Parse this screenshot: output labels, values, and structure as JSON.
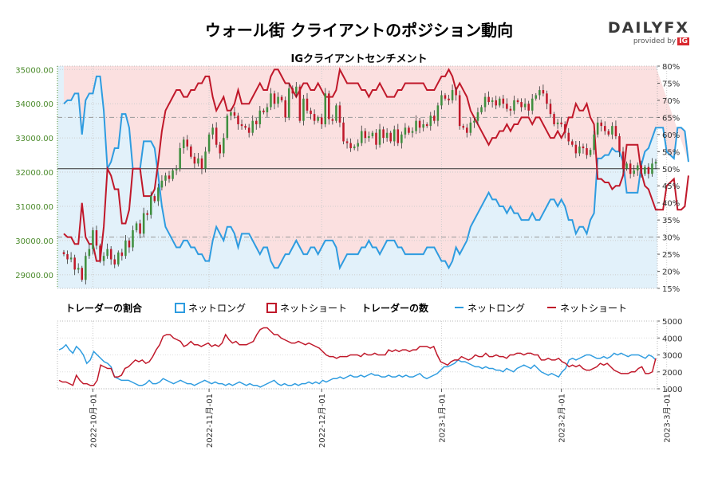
{
  "header": {
    "title": "ウォール街 クライアントのポジション動向",
    "subtitle": "IGクライアントセンチメント",
    "logo": {
      "word_part1": "DAILY",
      "word_part2": "FX",
      "provided_by": "provided by",
      "brand": "IG"
    }
  },
  "legend": {
    "ratio_title": "トレーダーの割合",
    "count_title": "トレーダーの数",
    "net_long": "ネットロング",
    "net_short": "ネットショート"
  },
  "colors": {
    "net_long": "#2e9ce0",
    "net_short": "#c0182a",
    "candle_up": "#3f8f3f",
    "candle_down": "#c0182a",
    "fill_short": "#fbe0e0",
    "fill_long": "#e2f1fa",
    "axis_left": "#4a8a2a"
  },
  "chart_data": [
    {
      "type": "candlestick",
      "name": "price",
      "y_axis_left": {
        "ticks": [
          "35000.00",
          "34000.00",
          "33000.00",
          "32000.00",
          "31000.00",
          "30000.00",
          "29000.00"
        ],
        "range": [
          28600,
          35100
        ]
      },
      "y_axis_right": {
        "ticks": [
          "80%",
          "75%",
          "70%",
          "65%",
          "60%",
          "55%",
          "50%",
          "45%",
          "40%",
          "35%",
          "30%",
          "25%",
          "20%",
          "15%"
        ],
        "range": [
          15,
          80
        ]
      },
      "x_ticks": [
        "2022-10月-01",
        "2022-11月-01",
        "2022-12月-01",
        "2023-1月-01",
        "2023-2月-01",
        "2023-3月-01"
      ],
      "x_tick_index": [
        8,
        40,
        71,
        104,
        137,
        166
      ],
      "close": [
        29600,
        29450,
        29500,
        29150,
        29200,
        28850,
        29550,
        29750,
        30300,
        29850,
        29400,
        29550,
        29750,
        29450,
        29300,
        29650,
        29550,
        30000,
        29800,
        30300,
        30500,
        30200,
        30800,
        30750,
        31300,
        31150,
        31550,
        31750,
        31900,
        31800,
        32050,
        32100,
        32700,
        32950,
        32750,
        32450,
        32250,
        32400,
        32100,
        32600,
        33100,
        33300,
        32800,
        32550,
        33000,
        33650,
        33750,
        33650,
        33400,
        33350,
        33300,
        33150,
        33500,
        33400,
        33800,
        33750,
        33900,
        34300,
        34000,
        34200,
        34100,
        33600,
        34450,
        34300,
        34500,
        33500,
        34150,
        33800,
        33700,
        33500,
        33600,
        33400,
        34300,
        33550,
        33500,
        33950,
        33450,
        32900,
        32850,
        32700,
        32750,
        32850,
        33200,
        33000,
        33050,
        33150,
        32800,
        33250,
        33000,
        33150,
        32900,
        33250,
        32850,
        33100,
        33300,
        33150,
        33200,
        33500,
        33300,
        33400,
        33350,
        33650,
        33500,
        33950,
        34250,
        34150,
        34100,
        34400,
        34250,
        33350,
        33300,
        33150,
        33450,
        33500,
        33750,
        33900,
        34200,
        34050,
        34100,
        33950,
        34150,
        34000,
        33850,
        33800,
        34100,
        34050,
        33900,
        34000,
        33800,
        34150,
        34250,
        34400,
        34300,
        34000,
        33700,
        33400,
        33450,
        33400,
        33150,
        32900,
        32800,
        32550,
        32750,
        32700,
        32500,
        32650,
        33100,
        33450,
        33350,
        33200,
        33100,
        33350,
        33050,
        32600,
        32100,
        32250,
        31950,
        32050,
        32200,
        31950,
        32150,
        31950,
        32250,
        32300
      ],
      "ratio_net_long_pct": [
        69,
        70,
        70,
        72,
        72,
        60,
        70,
        72,
        72,
        77,
        77,
        67,
        50,
        52,
        56,
        56,
        66,
        66,
        62,
        50,
        50,
        50,
        58,
        58,
        58,
        56,
        48,
        39,
        33,
        31,
        29,
        27,
        27,
        29,
        29,
        27,
        27,
        25,
        25,
        23,
        23,
        29,
        33,
        31,
        29,
        33,
        33,
        31,
        27,
        31,
        31,
        31,
        29,
        27,
        25,
        27,
        27,
        23,
        21,
        21,
        23,
        25,
        25,
        27,
        29,
        27,
        25,
        25,
        27,
        27,
        25,
        27,
        29,
        29,
        29,
        27,
        21,
        23,
        25,
        25,
        25,
        25,
        27,
        27,
        29,
        27,
        27,
        25,
        27,
        29,
        29,
        29,
        27,
        27,
        25,
        25,
        25,
        25,
        25,
        25,
        27,
        27,
        27,
        25,
        23,
        23,
        21,
        23,
        27,
        25,
        27,
        29,
        33,
        35,
        37,
        39,
        41,
        43,
        41,
        41,
        39,
        39,
        37,
        39,
        37,
        37,
        35,
        35,
        35,
        37,
        35,
        35,
        37,
        39,
        41,
        41,
        39,
        41,
        39,
        35,
        35,
        31,
        33,
        33,
        31,
        35,
        37,
        53,
        53,
        54,
        54,
        56,
        55,
        55,
        52,
        43,
        43,
        43,
        43,
        51,
        55,
        56,
        59,
        62,
        62,
        62,
        55,
        54,
        53,
        62,
        62,
        61,
        52
      ],
      "ratio_net_short_pct": [
        31,
        30,
        30,
        28,
        28,
        40,
        30,
        28,
        28,
        23,
        23,
        33,
        50,
        48,
        44,
        44,
        34,
        34,
        38,
        50,
        50,
        50,
        42,
        42,
        42,
        44,
        52,
        61,
        67,
        69,
        71,
        73,
        73,
        71,
        71,
        73,
        73,
        75,
        75,
        77,
        77,
        71,
        67,
        69,
        71,
        67,
        67,
        69,
        73,
        69,
        69,
        69,
        71,
        73,
        75,
        73,
        73,
        77,
        79,
        79,
        77,
        75,
        75,
        73,
        71,
        73,
        75,
        75,
        73,
        73,
        75,
        73,
        71,
        71,
        71,
        73,
        79,
        77,
        75,
        75,
        75,
        75,
        73,
        73,
        71,
        73,
        73,
        75,
        73,
        71,
        71,
        71,
        73,
        73,
        75,
        75,
        75,
        75,
        75,
        75,
        73,
        73,
        73,
        75,
        77,
        77,
        79,
        77,
        73,
        75,
        73,
        71,
        67,
        65,
        63,
        61,
        59,
        57,
        59,
        59,
        61,
        61,
        63,
        61,
        63,
        63,
        65,
        65,
        65,
        63,
        65,
        65,
        63,
        61,
        59,
        59,
        61,
        59,
        61,
        65,
        65,
        69,
        67,
        67,
        69,
        65,
        63,
        47,
        47,
        46,
        46,
        44,
        45,
        45,
        48,
        57,
        57,
        57,
        57,
        49,
        45,
        44,
        41,
        38,
        38,
        38,
        45,
        46,
        47,
        38,
        38,
        39,
        48
      ]
    },
    {
      "type": "line",
      "name": "trader_counts",
      "y_axis_right": {
        "ticks": [
          "5000",
          "4000",
          "3000",
          "2000",
          "1000"
        ],
        "range": [
          1000,
          5000
        ]
      },
      "net_long_approx": [
        3300,
        3400,
        3600,
        3300,
        3100,
        3500,
        3300,
        3000,
        2500,
        2700,
        3200,
        3000,
        2800,
        2600,
        2500,
        2300,
        1700,
        1600,
        1500,
        1500,
        1500,
        1400,
        1300,
        1200,
        1200,
        1300,
        1500,
        1300,
        1300,
        1400,
        1600,
        1500,
        1400,
        1300,
        1400,
        1500,
        1400,
        1300,
        1300,
        1200,
        1300,
        1400,
        1500,
        1400,
        1300,
        1400,
        1300,
        1300,
        1200,
        1300,
        1200,
        1300,
        1400,
        1300,
        1200,
        1300,
        1200,
        1200,
        1100,
        1200,
        1300,
        1400,
        1500,
        1300,
        1200,
        1300,
        1200,
        1200,
        1300,
        1200,
        1300,
        1300,
        1400,
        1300,
        1400,
        1300,
        1500,
        1400,
        1500,
        1600,
        1600,
        1700,
        1600,
        1700,
        1800,
        1700,
        1700,
        1800,
        1700,
        1800,
        1900,
        1800,
        1800,
        1700,
        1700,
        1800,
        1700,
        1700,
        1800,
        1700,
        1800,
        1700,
        1700,
        1800,
        1900,
        1700,
        1600,
        1700,
        1800,
        1900,
        2100,
        2300,
        2300,
        2400,
        2500,
        2700,
        2600,
        2600,
        2500,
        2400,
        2300,
        2300,
        2200,
        2300,
        2200,
        2200,
        2100,
        2100,
        2000,
        2200,
        2100,
        2000,
        2200,
        2300,
        2400,
        2300,
        2200,
        2400,
        2200,
        2000,
        1900,
        1800,
        1900,
        1800,
        1700,
        2000,
        2200,
        2700,
        2800,
        2700,
        2800,
        2900,
        3000,
        3000,
        2900,
        2800,
        2800,
        2900,
        2800,
        2900,
        3100,
        3000,
        3100,
        3000,
        2900,
        3000,
        3000,
        3000,
        2900,
        2800,
        3000,
        2900,
        2700
      ],
      "net_short_approx": [
        1500,
        1400,
        1400,
        1300,
        1200,
        1800,
        1500,
        1300,
        1300,
        1200,
        1200,
        1500,
        2400,
        2300,
        2200,
        2200,
        1700,
        1700,
        1800,
        2200,
        2300,
        2500,
        2700,
        2600,
        2700,
        2500,
        2600,
        2900,
        3300,
        3600,
        4100,
        4200,
        4200,
        4000,
        3900,
        3800,
        3500,
        3600,
        3800,
        3600,
        3600,
        3500,
        3600,
        3700,
        3500,
        3600,
        3500,
        3700,
        4200,
        3900,
        3700,
        3800,
        3600,
        3600,
        3600,
        3700,
        3800,
        4200,
        4500,
        4600,
        4600,
        4400,
        4200,
        4200,
        4000,
        3900,
        3800,
        3700,
        3700,
        3800,
        3700,
        3600,
        3700,
        3600,
        3500,
        3400,
        3200,
        3000,
        2900,
        2900,
        2800,
        2900,
        2900,
        2900,
        3000,
        3000,
        3000,
        2900,
        3100,
        3000,
        3000,
        3100,
        3000,
        3000,
        3000,
        3300,
        3200,
        3300,
        3200,
        3300,
        3300,
        3200,
        3300,
        3300,
        3500,
        3500,
        3500,
        3400,
        3500,
        3000,
        2600,
        2500,
        2400,
        2600,
        2700,
        2700,
        2900,
        2800,
        2700,
        2800,
        3000,
        2900,
        2900,
        3100,
        2900,
        2900,
        3000,
        2900,
        2900,
        2800,
        3000,
        3000,
        3100,
        3100,
        3000,
        3100,
        3100,
        3000,
        3000,
        2700,
        2700,
        2800,
        2700,
        2700,
        2800,
        2600,
        2500,
        2300,
        2400,
        2300,
        2400,
        2200,
        2100,
        2100,
        2200,
        2300,
        2500,
        2400,
        2500,
        2300,
        2100,
        2000,
        1900,
        1900,
        1900,
        2000,
        2000,
        2200,
        2300,
        1900,
        1900,
        2000,
        2800
      ]
    }
  ]
}
